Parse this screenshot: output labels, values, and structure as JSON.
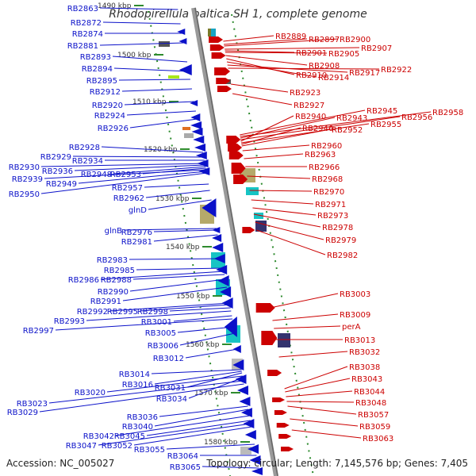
{
  "title": "Rhodopirellula baltica SH 1, complete genome",
  "accession": "Accession: NC_005027",
  "summary": "Topology: circular; Length: 7,145,576 bp; Genes: 7,405",
  "colors": {
    "forward": "#0b11c9",
    "reverse": "#cc0000",
    "backbone": "#9a9a9a",
    "tick": "#2e8b2e"
  },
  "kbp_ticks": [
    "1490 kbp",
    "1500 kbp",
    "1510 kbp",
    "1520 kbp",
    "1530 kbp",
    "1540 kbp",
    "1550 kbp",
    "1560 kbp",
    "1570 kbp",
    "1580 kbp"
  ],
  "left_labels": [
    "RB2863",
    "RB2872",
    "RB2874",
    "RB2881",
    "RB2893",
    "RB2894",
    "RB2895",
    "RB2912",
    "RB2920",
    "RB2924",
    "RB2926",
    "RB2928",
    "RB2929",
    "RB2934",
    "RB2930",
    "RB2936",
    "RB2948",
    "RB2953",
    "RB2939",
    "RB2949",
    "RB2950",
    "RB2957",
    "RB2962",
    "glnD",
    "glnB",
    "RB2976",
    "RB2981",
    "RB2983",
    "RB2985",
    "RB2986",
    "RB2988",
    "RB2990",
    "RB2991",
    "RB2992",
    "RB2995",
    "RB2998",
    "RB2993",
    "RB3001",
    "RB2997",
    "RB3005",
    "RB3006",
    "RB3012",
    "RB3014",
    "RB3016",
    "RB3031",
    "RB3020",
    "RB3034",
    "RB3023",
    "RB3029",
    "RB3036",
    "RB3040",
    "RB3042",
    "RB3045",
    "RB3047",
    "RB3052",
    "RB3055",
    "RB3064",
    "RB3065"
  ],
  "right_labels": [
    "RB2889",
    "RB2897",
    "RB2900",
    "RB2907",
    "RB2901",
    "RB2905",
    "RB2908",
    "RB2910",
    "RB2914",
    "RB2917",
    "RB2922",
    "RB2923",
    "RB2927",
    "RB2945",
    "RB2958",
    "RB2943",
    "RB2956",
    "RB2940",
    "RB2955",
    "RB2946",
    "RB2952",
    "RB2960",
    "RB2963",
    "RB2966",
    "RB2968",
    "RB2970",
    "RB2971",
    "RB2973",
    "RB2978",
    "RB2979",
    "RB2982",
    "RB3003",
    "RB3009",
    "perA",
    "RB3013",
    "RB3032",
    "RB3038",
    "RB3043",
    "RB3044",
    "RB3048",
    "RB3057",
    "RB3059",
    "RB3063"
  ]
}
